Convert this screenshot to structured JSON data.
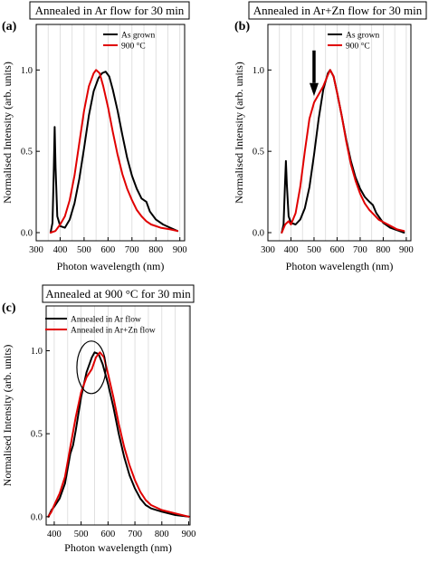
{
  "chart_data": [
    {
      "id": "a",
      "panel_label": "(a)",
      "title": "Annealed in Ar flow for 30 min",
      "type": "line",
      "xlabel": "Photon wavelength (nm)",
      "ylabel": "Normalised Intensity (arb. units)",
      "xlim": [
        300,
        920
      ],
      "ylim": [
        -0.05,
        1.28
      ],
      "xticks": [
        300,
        400,
        500,
        600,
        700,
        800,
        900
      ],
      "yticks": [
        0.0,
        0.5,
        1.0
      ],
      "ytick_labels": [
        "0.0",
        "0.5",
        "1.0"
      ],
      "grid": "vertical",
      "legend_position": "top-right",
      "series": [
        {
          "name": "As grown",
          "color": "#000000",
          "points": [
            [
              360,
              0.0
            ],
            [
              368,
              0.06
            ],
            [
              373,
              0.35
            ],
            [
              377,
              0.65
            ],
            [
              381,
              0.4
            ],
            [
              388,
              0.1
            ],
            [
              400,
              0.04
            ],
            [
              420,
              0.03
            ],
            [
              440,
              0.08
            ],
            [
              460,
              0.18
            ],
            [
              480,
              0.33
            ],
            [
              500,
              0.52
            ],
            [
              520,
              0.72
            ],
            [
              540,
              0.87
            ],
            [
              560,
              0.95
            ],
            [
              575,
              0.98
            ],
            [
              590,
              0.99
            ],
            [
              605,
              0.96
            ],
            [
              620,
              0.88
            ],
            [
              640,
              0.75
            ],
            [
              660,
              0.6
            ],
            [
              680,
              0.46
            ],
            [
              700,
              0.35
            ],
            [
              720,
              0.27
            ],
            [
              740,
              0.21
            ],
            [
              760,
              0.19
            ],
            [
              775,
              0.13
            ],
            [
              800,
              0.08
            ],
            [
              830,
              0.05
            ],
            [
              860,
              0.03
            ],
            [
              890,
              0.01
            ]
          ]
        },
        {
          "name": "900 °C",
          "color": "#e00000",
          "points": [
            [
              360,
              0.0
            ],
            [
              380,
              0.01
            ],
            [
              400,
              0.05
            ],
            [
              420,
              0.1
            ],
            [
              440,
              0.2
            ],
            [
              460,
              0.35
            ],
            [
              480,
              0.55
            ],
            [
              500,
              0.75
            ],
            [
              520,
              0.9
            ],
            [
              540,
              0.98
            ],
            [
              550,
              1.0
            ],
            [
              565,
              0.98
            ],
            [
              580,
              0.9
            ],
            [
              600,
              0.77
            ],
            [
              620,
              0.62
            ],
            [
              640,
              0.48
            ],
            [
              660,
              0.36
            ],
            [
              680,
              0.27
            ],
            [
              700,
              0.2
            ],
            [
              720,
              0.14
            ],
            [
              740,
              0.1
            ],
            [
              760,
              0.07
            ],
            [
              780,
              0.05
            ],
            [
              820,
              0.03
            ],
            [
              860,
              0.02
            ],
            [
              890,
              0.01
            ]
          ]
        }
      ]
    },
    {
      "id": "b",
      "panel_label": "(b)",
      "title": "Annealed in Ar+Zn flow for 30 min",
      "type": "line",
      "xlabel": "Photon wavelength (nm)",
      "ylabel": "Normalised Intensity (arb. units)",
      "xlim": [
        300,
        920
      ],
      "ylim": [
        -0.05,
        1.28
      ],
      "xticks": [
        300,
        400,
        500,
        600,
        700,
        800,
        900
      ],
      "yticks": [
        0.0,
        0.5,
        1.0
      ],
      "ytick_labels": [
        "0.0",
        "0.5",
        "1.0"
      ],
      "grid": "vertical",
      "legend_position": "top-right",
      "annotation": "arrow near 500 nm",
      "series": [
        {
          "name": "As grown",
          "color": "#000000",
          "points": [
            [
              360,
              0.0
            ],
            [
              368,
              0.05
            ],
            [
              374,
              0.3
            ],
            [
              378,
              0.44
            ],
            [
              382,
              0.3
            ],
            [
              390,
              0.1
            ],
            [
              400,
              0.06
            ],
            [
              420,
              0.05
            ],
            [
              440,
              0.08
            ],
            [
              460,
              0.15
            ],
            [
              480,
              0.28
            ],
            [
              500,
              0.48
            ],
            [
              520,
              0.7
            ],
            [
              540,
              0.88
            ],
            [
              560,
              0.98
            ],
            [
              570,
              1.0
            ],
            [
              585,
              0.96
            ],
            [
              600,
              0.86
            ],
            [
              620,
              0.72
            ],
            [
              640,
              0.57
            ],
            [
              660,
              0.44
            ],
            [
              680,
              0.34
            ],
            [
              700,
              0.27
            ],
            [
              720,
              0.22
            ],
            [
              740,
              0.19
            ],
            [
              755,
              0.17
            ],
            [
              770,
              0.12
            ],
            [
              800,
              0.06
            ],
            [
              830,
              0.03
            ],
            [
              870,
              0.01
            ],
            [
              890,
              0.0
            ]
          ]
        },
        {
          "name": "900 °C",
          "color": "#e00000",
          "points": [
            [
              360,
              0.0
            ],
            [
              375,
              0.05
            ],
            [
              390,
              0.07
            ],
            [
              400,
              0.05
            ],
            [
              420,
              0.12
            ],
            [
              440,
              0.28
            ],
            [
              460,
              0.5
            ],
            [
              480,
              0.7
            ],
            [
              500,
              0.8
            ],
            [
              520,
              0.85
            ],
            [
              540,
              0.9
            ],
            [
              560,
              0.97
            ],
            [
              570,
              1.0
            ],
            [
              585,
              0.96
            ],
            [
              600,
              0.86
            ],
            [
              620,
              0.72
            ],
            [
              640,
              0.56
            ],
            [
              660,
              0.42
            ],
            [
              680,
              0.32
            ],
            [
              700,
              0.24
            ],
            [
              720,
              0.18
            ],
            [
              740,
              0.14
            ],
            [
              760,
              0.11
            ],
            [
              780,
              0.08
            ],
            [
              820,
              0.05
            ],
            [
              860,
              0.02
            ],
            [
              890,
              0.01
            ]
          ]
        }
      ]
    },
    {
      "id": "c",
      "panel_label": "(c)",
      "title": "Annealed at 900 °C for 30 min",
      "type": "line",
      "xlabel": "Photon wavelength (nm)",
      "ylabel": "Normalised Intensity (arb. units)",
      "xlim": [
        370,
        905
      ],
      "ylim": [
        -0.05,
        1.27
      ],
      "xticks": [
        400,
        500,
        600,
        700,
        800,
        900
      ],
      "yticks": [
        0.0,
        0.5,
        1.0
      ],
      "ytick_labels": [
        "0.0",
        "0.5",
        "1.0"
      ],
      "grid": "vertical",
      "legend_position": "top-left",
      "annotation": "ellipse around peak near 540 nm",
      "series": [
        {
          "name": "Annealed in Ar flow",
          "color": "#000000",
          "points": [
            [
              378,
              0.0
            ],
            [
              390,
              0.04
            ],
            [
              400,
              0.06
            ],
            [
              420,
              0.11
            ],
            [
              440,
              0.2
            ],
            [
              460,
              0.38
            ],
            [
              470,
              0.43
            ],
            [
              480,
              0.52
            ],
            [
              500,
              0.72
            ],
            [
              520,
              0.87
            ],
            [
              540,
              0.96
            ],
            [
              550,
              0.99
            ],
            [
              565,
              0.98
            ],
            [
              580,
              0.92
            ],
            [
              600,
              0.8
            ],
            [
              620,
              0.66
            ],
            [
              640,
              0.5
            ],
            [
              660,
              0.36
            ],
            [
              680,
              0.25
            ],
            [
              700,
              0.17
            ],
            [
              720,
              0.11
            ],
            [
              740,
              0.07
            ],
            [
              760,
              0.05
            ],
            [
              800,
              0.03
            ],
            [
              850,
              0.01
            ],
            [
              900,
              0.0
            ]
          ]
        },
        {
          "name": "Annealed in Ar+Zn flow",
          "color": "#e00000",
          "points": [
            [
              378,
              0.0
            ],
            [
              390,
              0.03
            ],
            [
              400,
              0.07
            ],
            [
              420,
              0.14
            ],
            [
              440,
              0.24
            ],
            [
              460,
              0.42
            ],
            [
              480,
              0.6
            ],
            [
              500,
              0.75
            ],
            [
              520,
              0.84
            ],
            [
              540,
              0.89
            ],
            [
              555,
              0.96
            ],
            [
              570,
              0.99
            ],
            [
              585,
              0.96
            ],
            [
              600,
              0.86
            ],
            [
              620,
              0.72
            ],
            [
              640,
              0.56
            ],
            [
              660,
              0.42
            ],
            [
              680,
              0.31
            ],
            [
              700,
              0.22
            ],
            [
              720,
              0.15
            ],
            [
              740,
              0.1
            ],
            [
              760,
              0.07
            ],
            [
              800,
              0.04
            ],
            [
              850,
              0.02
            ],
            [
              900,
              0.0
            ]
          ]
        }
      ]
    }
  ]
}
